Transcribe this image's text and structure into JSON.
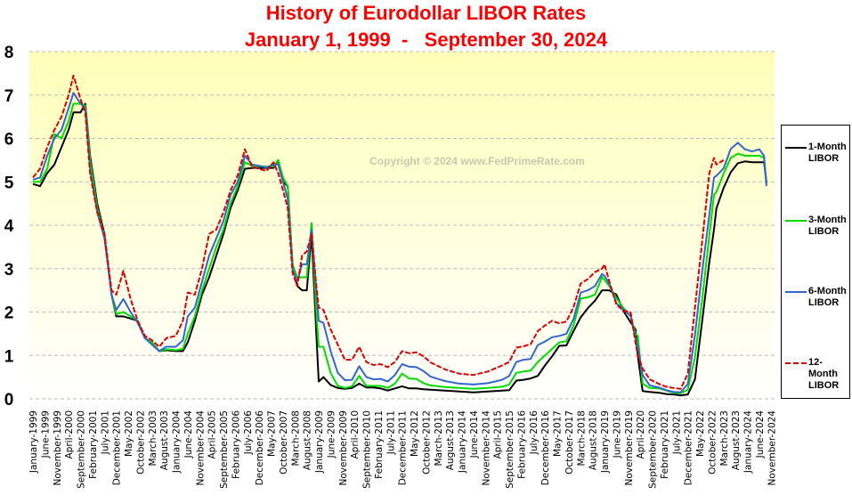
{
  "chart_data": {
    "type": "line",
    "title": "History of Eurodollar LIBOR Rates",
    "subtitle": "January 1, 1999  -   September 30, 2024",
    "watermark": "Copyright © 2024 www.FedPrimeRate.com",
    "ylim": [
      0,
      8
    ],
    "yticks": [
      "0",
      "1",
      "2",
      "3",
      "4",
      "5",
      "6",
      "7",
      "8"
    ],
    "grid": "horizontal dashed",
    "legend_placement": "right",
    "xlabels": [
      "January-1999",
      "June-1999",
      "November-1999",
      "April-2000",
      "September-2000",
      "February-2001",
      "July-2001",
      "December-2001",
      "May-2002",
      "October-2002",
      "March-2003",
      "August-2003",
      "January-2004",
      "June-2004",
      "November-2004",
      "April-2005",
      "September-2005",
      "February-2006",
      "July-2006",
      "December-2006",
      "May-2007",
      "October-2007",
      "March-2008",
      "August-2008",
      "January-2009",
      "June-2009",
      "November-2009",
      "April-2010",
      "September-2010",
      "February-2011",
      "July-2011",
      "December-2011",
      "May-2012",
      "October-2012",
      "March-2013",
      "August-2013",
      "January-2014",
      "June-2014",
      "November-2014",
      "April-2015",
      "September-2015",
      "February-2016",
      "July-2016",
      "December-2016",
      "May-2017",
      "October-2017",
      "March-2018",
      "August-2018",
      "January-2019",
      "June-2019",
      "November-2019",
      "April-2020",
      "September-2020",
      "February-2021",
      "July-2021",
      "December-2021",
      "May-2022",
      "October-2022",
      "March-2023",
      "August-2023",
      "January-2024",
      "June-2024",
      "November-2024"
    ],
    "x": [
      "1999-01",
      "1999-04",
      "1999-07",
      "1999-10",
      "2000-01",
      "2000-04",
      "2000-06",
      "2000-09",
      "2000-11",
      "2001-01",
      "2001-04",
      "2001-07",
      "2001-10",
      "2001-12",
      "2002-03",
      "2002-06",
      "2002-09",
      "2002-12",
      "2003-03",
      "2003-06",
      "2003-09",
      "2004-01",
      "2004-04",
      "2004-06",
      "2004-09",
      "2004-12",
      "2005-03",
      "2005-06",
      "2005-09",
      "2005-12",
      "2006-03",
      "2006-06",
      "2006-09",
      "2006-12",
      "2007-03",
      "2007-06",
      "2007-08",
      "2007-10",
      "2007-12",
      "2008-02",
      "2008-04",
      "2008-06",
      "2008-08",
      "2008-10",
      "2008-12",
      "2009-01",
      "2009-03",
      "2009-06",
      "2009-09",
      "2009-12",
      "2010-03",
      "2010-06",
      "2010-09",
      "2010-12",
      "2011-03",
      "2011-06",
      "2011-09",
      "2011-12",
      "2012-03",
      "2012-06",
      "2012-09",
      "2012-12",
      "2013-06",
      "2013-12",
      "2014-06",
      "2014-12",
      "2015-06",
      "2015-09",
      "2015-12",
      "2016-03",
      "2016-06",
      "2016-09",
      "2016-12",
      "2017-03",
      "2017-06",
      "2017-09",
      "2017-12",
      "2018-03",
      "2018-06",
      "2018-09",
      "2018-12",
      "2019-01",
      "2019-03",
      "2019-06",
      "2019-09",
      "2019-12",
      "2020-02",
      "2020-03",
      "2020-05",
      "2020-08",
      "2020-12",
      "2021-03",
      "2021-06",
      "2021-09",
      "2021-12",
      "2022-03",
      "2022-06",
      "2022-09",
      "2022-11",
      "2022-12",
      "2023-03",
      "2023-06",
      "2023-09",
      "2023-12",
      "2024-03",
      "2024-06",
      "2024-08",
      "2024-09"
    ],
    "series": [
      {
        "name": "1-Month LIBOR",
        "color": "#000000",
        "dash": "solid",
        "values": [
          4.95,
          4.9,
          5.2,
          5.4,
          5.8,
          6.2,
          6.6,
          6.6,
          6.8,
          5.6,
          4.5,
          3.8,
          2.4,
          1.9,
          1.9,
          1.85,
          1.8,
          1.4,
          1.3,
          1.1,
          1.12,
          1.1,
          1.1,
          1.3,
          1.8,
          2.4,
          2.8,
          3.3,
          3.8,
          4.4,
          4.8,
          5.3,
          5.32,
          5.32,
          5.32,
          5.32,
          5.5,
          5.0,
          4.9,
          3.1,
          2.6,
          2.5,
          2.5,
          3.8,
          1.5,
          0.4,
          0.5,
          0.32,
          0.25,
          0.23,
          0.25,
          0.35,
          0.26,
          0.26,
          0.24,
          0.19,
          0.24,
          0.29,
          0.24,
          0.24,
          0.22,
          0.21,
          0.19,
          0.17,
          0.15,
          0.17,
          0.19,
          0.2,
          0.42,
          0.44,
          0.47,
          0.53,
          0.77,
          0.98,
          1.22,
          1.23,
          1.56,
          1.88,
          2.09,
          2.26,
          2.5,
          2.5,
          2.5,
          2.4,
          2.02,
          1.76,
          1.6,
          0.99,
          0.18,
          0.16,
          0.14,
          0.11,
          0.1,
          0.08,
          0.1,
          0.45,
          1.79,
          3.14,
          3.9,
          4.39,
          4.86,
          5.22,
          5.43,
          5.47,
          5.45,
          5.45,
          5.45,
          5.0
        ]
      },
      {
        "name": "3-Month LIBOR",
        "color": "#00dd00",
        "dash": "solid",
        "values": [
          5.0,
          5.0,
          5.3,
          6.1,
          6.0,
          6.4,
          6.8,
          6.8,
          6.75,
          5.5,
          4.4,
          3.75,
          2.4,
          1.95,
          2.0,
          1.9,
          1.8,
          1.4,
          1.3,
          1.1,
          1.14,
          1.12,
          1.15,
          1.5,
          1.9,
          2.5,
          3.0,
          3.5,
          3.9,
          4.5,
          4.9,
          5.45,
          5.37,
          5.36,
          5.35,
          5.36,
          5.5,
          5.1,
          4.9,
          3.1,
          2.8,
          2.8,
          2.8,
          4.05,
          2.0,
          1.2,
          1.2,
          0.6,
          0.3,
          0.25,
          0.29,
          0.53,
          0.3,
          0.3,
          0.3,
          0.25,
          0.35,
          0.58,
          0.47,
          0.46,
          0.36,
          0.31,
          0.27,
          0.25,
          0.23,
          0.25,
          0.28,
          0.33,
          0.6,
          0.63,
          0.65,
          0.85,
          1.0,
          1.15,
          1.3,
          1.33,
          1.69,
          2.31,
          2.34,
          2.4,
          2.81,
          2.74,
          2.6,
          2.32,
          2.09,
          1.9,
          1.5,
          1.45,
          0.35,
          0.25,
          0.24,
          0.19,
          0.14,
          0.13,
          0.21,
          0.96,
          2.29,
          3.75,
          4.7,
          4.77,
          5.19,
          5.55,
          5.65,
          5.6,
          5.6,
          5.6,
          5.55,
          4.95
        ]
      },
      {
        "name": "6-Month LIBOR",
        "color": "#3366cc",
        "dash": "solid",
        "values": [
          5.05,
          5.1,
          5.6,
          6.0,
          6.2,
          6.7,
          7.05,
          6.8,
          6.7,
          5.3,
          4.3,
          3.7,
          2.4,
          2.05,
          2.3,
          2.0,
          1.75,
          1.4,
          1.25,
          1.1,
          1.2,
          1.2,
          1.35,
          1.9,
          2.1,
          2.7,
          3.3,
          3.7,
          4.1,
          4.7,
          5.0,
          5.6,
          5.4,
          5.37,
          5.33,
          5.4,
          5.4,
          5.0,
          4.6,
          3.0,
          2.7,
          3.1,
          3.1,
          3.9,
          2.5,
          1.8,
          1.75,
          1.1,
          0.6,
          0.43,
          0.44,
          0.75,
          0.5,
          0.45,
          0.46,
          0.4,
          0.55,
          0.8,
          0.74,
          0.73,
          0.64,
          0.51,
          0.41,
          0.35,
          0.33,
          0.36,
          0.44,
          0.53,
          0.85,
          0.9,
          0.92,
          1.24,
          1.32,
          1.42,
          1.45,
          1.5,
          1.84,
          2.45,
          2.5,
          2.6,
          2.88,
          2.83,
          2.66,
          2.2,
          2.06,
          1.91,
          1.4,
          1.2,
          0.55,
          0.31,
          0.26,
          0.2,
          0.16,
          0.15,
          0.34,
          1.47,
          2.94,
          4.23,
          5.1,
          5.14,
          5.31,
          5.76,
          5.9,
          5.75,
          5.7,
          5.75,
          5.6,
          4.9
        ]
      },
      {
        "name": "12-Month LIBOR",
        "color": "#dd0000",
        "dash": "dashed",
        "values": [
          5.1,
          5.3,
          5.8,
          6.2,
          6.5,
          7.0,
          7.45,
          6.9,
          6.6,
          5.2,
          4.3,
          3.8,
          2.5,
          2.4,
          2.95,
          2.3,
          1.8,
          1.45,
          1.35,
          1.2,
          1.4,
          1.45,
          1.8,
          2.45,
          2.4,
          3.0,
          3.8,
          3.9,
          4.3,
          4.8,
          5.15,
          5.75,
          5.35,
          5.3,
          5.25,
          5.45,
          5.2,
          4.8,
          4.4,
          2.9,
          2.6,
          3.3,
          3.4,
          3.8,
          2.6,
          2.1,
          2.05,
          1.6,
          1.25,
          0.9,
          0.9,
          1.2,
          0.85,
          0.78,
          0.8,
          0.73,
          0.85,
          1.1,
          1.05,
          1.07,
          0.98,
          0.84,
          0.68,
          0.58,
          0.55,
          0.63,
          0.77,
          0.85,
          1.18,
          1.21,
          1.26,
          1.56,
          1.69,
          1.8,
          1.74,
          1.78,
          2.11,
          2.66,
          2.76,
          2.92,
          3.0,
          3.1,
          2.71,
          2.17,
          2.03,
          1.99,
          1.3,
          1.0,
          0.7,
          0.45,
          0.34,
          0.28,
          0.25,
          0.23,
          0.58,
          2.1,
          3.62,
          5.2,
          5.55,
          5.4,
          5.5,
          null,
          null,
          null,
          null,
          null,
          null,
          null
        ]
      }
    ]
  }
}
